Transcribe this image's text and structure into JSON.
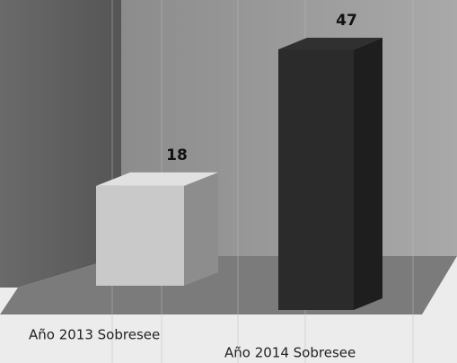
{
  "chart_data": {
    "type": "bar3d",
    "categories": [
      "Año 2013 Sobresee",
      "Año 2014 Sobresee"
    ],
    "values": [
      18,
      47
    ],
    "colors": [
      "#c9c9c9",
      "#2b2b2b"
    ]
  }
}
